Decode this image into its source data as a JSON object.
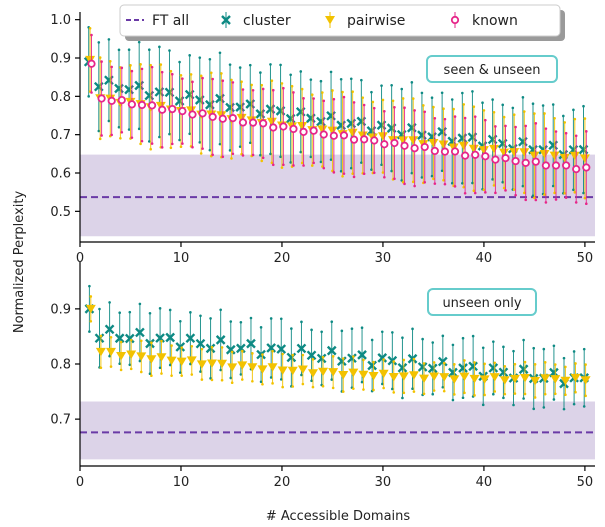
{
  "chart_data": {
    "type": "line",
    "xlabel": "# Accessible Domains",
    "ylabel": "Normalized Perplexity",
    "legend": {
      "placement": "top",
      "entries": [
        {
          "key": "ft",
          "label": "FT all",
          "color": "#6a3aa6",
          "marker": "dash"
        },
        {
          "key": "cluster",
          "label": "cluster",
          "color": "#0e8a84",
          "marker": "x"
        },
        {
          "key": "pairwise",
          "label": "pairwise",
          "color": "#f2c200",
          "marker": "triangle-down"
        },
        {
          "key": "known",
          "label": "known",
          "color": "#e6268a",
          "marker": "circle"
        }
      ]
    },
    "panels": [
      {
        "key": "top",
        "annotation": "seen & unseen",
        "xlim": [
          0,
          51
        ],
        "ylim": [
          0.42,
          1.02
        ],
        "xticks": [
          0,
          10,
          20,
          30,
          40,
          50
        ],
        "yticks": [
          0.5,
          0.6,
          0.7,
          0.8,
          0.9,
          1.0
        ],
        "ytick_labels": [
          "0.5",
          "0.6",
          "0.7",
          "0.8",
          "0.9",
          "1.0"
        ],
        "ft_all": {
          "mean": 0.537,
          "band": [
            0.435,
            0.648
          ]
        },
        "series": [
          {
            "key": "cluster",
            "mean_start": 0.89,
            "mean_second": 0.835,
            "mean_end": 0.655,
            "curve": 1.2,
            "err": 0.12,
            "noise": 0.012
          },
          {
            "key": "pairwise",
            "mean_start": 0.895,
            "mean_second": 0.795,
            "mean_end": 0.64,
            "curve": 1.25,
            "err": 0.11,
            "noise": 0.004
          },
          {
            "key": "known",
            "mean_start": 0.885,
            "mean_second": 0.795,
            "mean_end": 0.612,
            "curve": 1.15,
            "err": 0.1,
            "noise": 0.004
          }
        ]
      },
      {
        "key": "bottom",
        "annotation": "unseen only",
        "xlim": [
          0,
          51
        ],
        "ylim": [
          0.615,
          0.985
        ],
        "xticks": [
          0,
          10,
          20,
          30,
          40,
          50
        ],
        "yticks": [
          0.7,
          0.8,
          0.9
        ],
        "ytick_labels": [
          "0.7",
          "0.8",
          "0.9"
        ],
        "ft_all": {
          "mean": 0.676,
          "band": [
            0.627,
            0.732
          ]
        },
        "series": [
          {
            "key": "cluster",
            "mean_start": 0.9,
            "mean_second": 0.855,
            "mean_end": 0.77,
            "curve": 1.0,
            "err": 0.055,
            "noise": 0.01
          },
          {
            "key": "pairwise",
            "mean_start": 0.9,
            "mean_second": 0.822,
            "mean_end": 0.772,
            "curve": 2.2,
            "err": 0.03,
            "noise": 0.003
          }
        ]
      }
    ]
  }
}
